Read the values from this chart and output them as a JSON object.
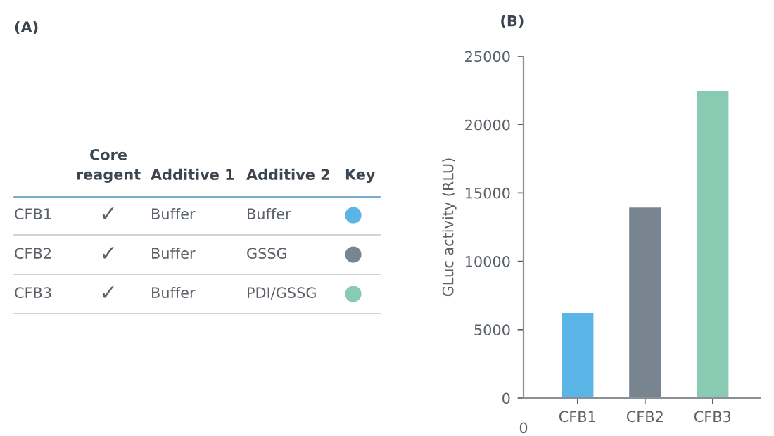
{
  "chart_data": [
    {
      "type": "other",
      "title": "(A)",
      "categories": [
        "Core\nreagent",
        "Additive 1",
        "Additive 2",
        "Key"
      ],
      "y_categories": [
        "CFB1",
        "CFB2",
        "CFB3"
      ],
      "cell_labels": [
        [
          "✓",
          "Buffer",
          "Buffer",
          null
        ],
        [
          "✓",
          "Buffer",
          "GSSG",
          null
        ],
        [
          "✓",
          "Buffer",
          "PDI/GSSG",
          null
        ]
      ],
      "colors": [
        "#5ab4e5",
        "#78848f",
        "#88cbb2"
      ]
    },
    {
      "type": "bar",
      "title": "(B)",
      "ylabel": "GLuc activity (RLU)",
      "categories": [
        "CFB1",
        "CFB2",
        "CFB3"
      ],
      "values": [
        6300,
        14000,
        22500
      ],
      "colors": [
        "#5ab4e5",
        "#78848f",
        "#88cbb2"
      ],
      "ylim": [
        0,
        25000
      ],
      "yticks": [
        0,
        5000,
        10000,
        15000,
        20000,
        25000
      ],
      "grid": false,
      "annotations": [
        "0"
      ]
    }
  ]
}
